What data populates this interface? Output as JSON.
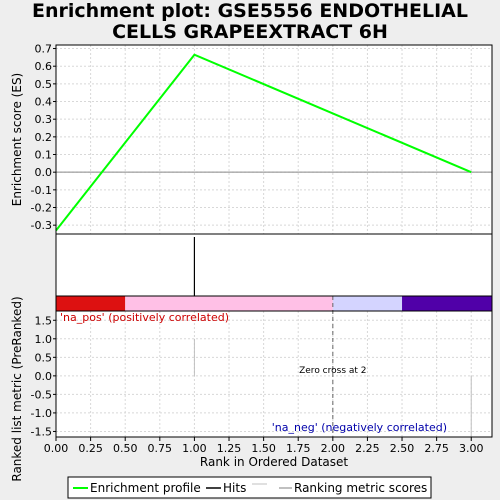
{
  "title_line1": "Enrichment plot: GSE5556 ENDOTHELIAL",
  "title_line2": "CELLS GRAPEEXTRACT 6H",
  "chart_data": [
    {
      "type": "line",
      "panel": "enrichment",
      "ylabel": "Enrichment score (ES)",
      "x": [
        0,
        1,
        3
      ],
      "series": [
        {
          "name": "Enrichment profile",
          "values": [
            -0.33,
            0.665,
            0.0
          ]
        }
      ],
      "xlim": [
        0,
        3.15
      ],
      "ylim": [
        -0.35,
        0.72
      ],
      "yticks": [
        -0.3,
        -0.2,
        -0.1,
        0.0,
        0.1,
        0.2,
        0.3,
        0.4,
        0.5,
        0.6,
        0.7
      ],
      "grid": true,
      "color": "#00ff00"
    },
    {
      "type": "bar",
      "panel": "hits",
      "series": [
        {
          "name": "Hits",
          "values": [
            1
          ]
        }
      ],
      "x": [
        1
      ]
    },
    {
      "type": "heatmap",
      "panel": "correlation-bar",
      "segments": [
        {
          "from": 0,
          "to": 0.5,
          "color": "#dd1111"
        },
        {
          "from": 0.5,
          "to": 2.0,
          "color": "#ffc0e6"
        },
        {
          "from": 2.0,
          "to": 2.5,
          "color": "#d4d4ff"
        },
        {
          "from": 2.5,
          "to": 3.15,
          "color": "#5000a8"
        }
      ]
    },
    {
      "type": "line",
      "panel": "ranked-metric",
      "ylabel": "Ranked list metric (PreRanked)",
      "xlabel": "Rank in Ordered Dataset",
      "xlim": [
        0,
        3.15
      ],
      "ylim": [
        -1.65,
        1.75
      ],
      "yticks": [
        -1.5,
        -1.0,
        -0.5,
        0.0,
        0.5,
        1.0,
        1.5
      ],
      "xticks": [
        0.0,
        0.25,
        0.5,
        0.75,
        1.0,
        1.25,
        1.5,
        1.75,
        2.0,
        2.25,
        2.5,
        2.75,
        3.0
      ],
      "grid": true,
      "metric_lines": [
        {
          "x": 1,
          "from": 0,
          "to": 1.0
        },
        {
          "x": 3,
          "from": -1.65,
          "to": 0
        }
      ],
      "zero_cross": 2,
      "zero_cross_label": "Zero cross at 2",
      "pos_label": "'na_pos' (positively correlated)",
      "neg_label": "'na_neg' (negatively correlated)"
    }
  ],
  "legend": {
    "placement": "bottom",
    "items": [
      {
        "label": "Enrichment profile",
        "color": "#00ff00"
      },
      {
        "label": "Hits",
        "color": "#000000"
      },
      {
        "label": "Ranking metric scores",
        "color": "#c0c0c0"
      }
    ]
  }
}
